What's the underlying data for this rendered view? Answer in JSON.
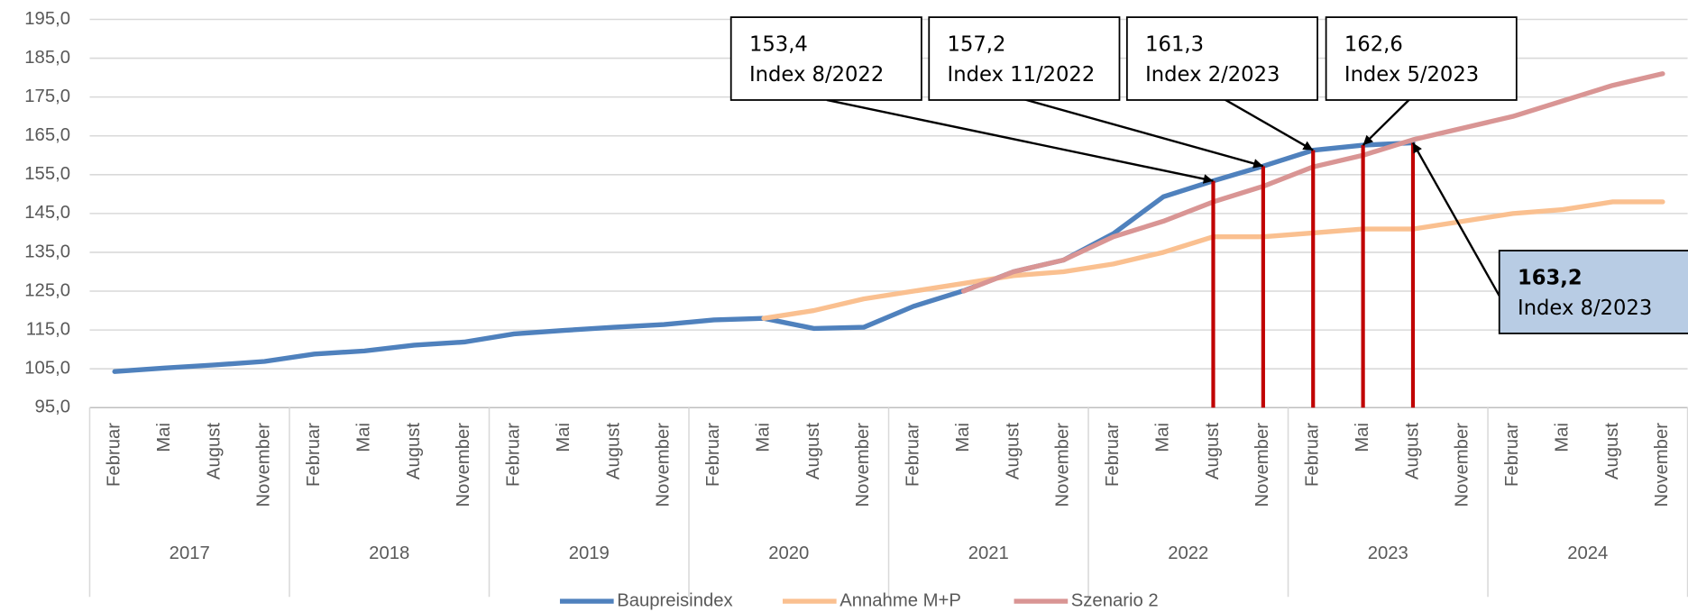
{
  "chart_data": {
    "type": "line",
    "categories": [
      "Februar",
      "Mai",
      "August",
      "November",
      "Februar",
      "Mai",
      "August",
      "November",
      "Februar",
      "Mai",
      "August",
      "November",
      "Februar",
      "Mai",
      "August",
      "November",
      "Februar",
      "Mai",
      "August",
      "November",
      "Februar",
      "Mai",
      "August",
      "November",
      "Februar",
      "Mai",
      "August",
      "November",
      "Februar",
      "Mai",
      "August",
      "November"
    ],
    "years": [
      "2017",
      "2018",
      "2019",
      "2020",
      "2021",
      "2022",
      "2023",
      "2024"
    ],
    "series": [
      {
        "name": "Baupreisindex",
        "color": "#4f81bd",
        "values": [
          104.3,
          105.2,
          106.0,
          106.9,
          108.8,
          109.6,
          111.1,
          111.9,
          114.0,
          114.9,
          115.7,
          116.4,
          117.6,
          118.0,
          115.4,
          115.7,
          121.1,
          125.1,
          130.0,
          133.0,
          139.8,
          149.3,
          153.4,
          157.2,
          161.3,
          162.6,
          163.2,
          null,
          null,
          null,
          null,
          null
        ]
      },
      {
        "name": "Annahme M+P",
        "color": "#fac090",
        "values": [
          null,
          null,
          null,
          null,
          null,
          null,
          null,
          null,
          null,
          null,
          null,
          null,
          null,
          118,
          120,
          123,
          125,
          127,
          129,
          130,
          132,
          135,
          139,
          139,
          140,
          141,
          141,
          143,
          145,
          146,
          148,
          148
        ]
      },
      {
        "name": "Szenario 2",
        "color": "#d99594",
        "values": [
          null,
          null,
          null,
          null,
          null,
          null,
          null,
          null,
          null,
          null,
          null,
          null,
          null,
          null,
          null,
          null,
          null,
          125,
          130,
          133,
          139,
          143,
          148,
          152,
          157,
          160,
          164,
          167,
          170,
          174,
          178,
          181
        ]
      }
    ],
    "ylim": [
      95,
      195
    ],
    "yticks": [
      {
        "value": 95,
        "label": "95,0"
      },
      {
        "value": 105,
        "label": "105,0"
      },
      {
        "value": 115,
        "label": "115,0"
      },
      {
        "value": 125,
        "label": "125,0"
      },
      {
        "value": 135,
        "label": "135,0"
      },
      {
        "value": 145,
        "label": "145,0"
      },
      {
        "value": 155,
        "label": "155,0"
      },
      {
        "value": 165,
        "label": "165,0"
      },
      {
        "value": 175,
        "label": "175,0"
      },
      {
        "value": 185,
        "label": "185,0"
      },
      {
        "value": 195,
        "label": "195,0"
      }
    ],
    "grid": true,
    "marker_color": "#c00000",
    "annotations": [
      {
        "value": 153.4,
        "label": "153,4",
        "text": "Index 8/2022"
      },
      {
        "value": 157.2,
        "label": "157,2",
        "text": "Index 11/2022"
      },
      {
        "value": 161.3,
        "label": "161,3",
        "text": "Index 2/2023"
      },
      {
        "value": 162.6,
        "label": "162,6",
        "text": "Index 5/2023"
      },
      {
        "value": 163.2,
        "label": "163,2",
        "text": "Index 8/2023"
      }
    ]
  }
}
